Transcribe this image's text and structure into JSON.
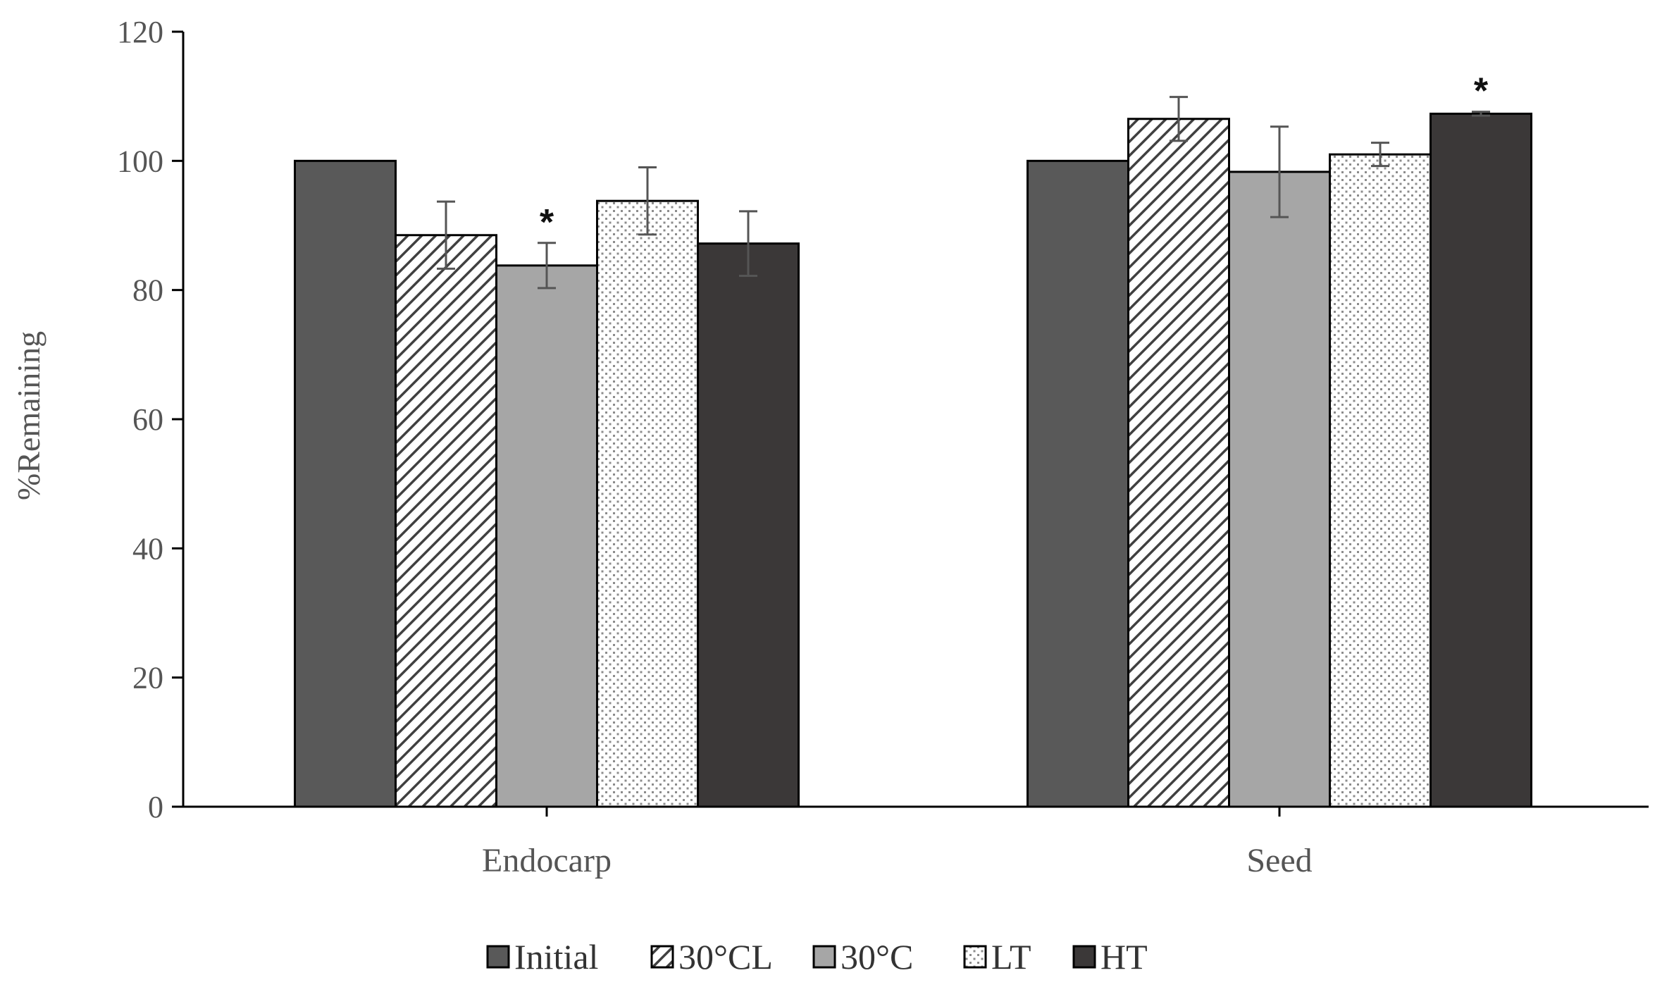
{
  "chart_data": {
    "type": "bar",
    "title": "",
    "xlabel": "",
    "ylabel": "%Remaining",
    "ylim": [
      0,
      120
    ],
    "yticks": [
      0,
      20,
      40,
      60,
      80,
      100,
      120
    ],
    "categories": [
      "Endocarp",
      "Seed"
    ],
    "grid": false,
    "legend_position": "bottom",
    "series": [
      {
        "name": "Initial",
        "fill": "solid",
        "color": "#595959",
        "values": [
          100,
          100
        ],
        "errors": [
          0,
          0
        ]
      },
      {
        "name": "30°CL",
        "fill": "diagonal-hatch",
        "color": "#404040",
        "values": [
          88.5,
          106.5
        ],
        "errors": [
          5.2,
          3.4
        ]
      },
      {
        "name": "30°C",
        "fill": "solid",
        "color": "#a6a6a6",
        "values": [
          83.8,
          98.3
        ],
        "errors": [
          3.5,
          7.0
        ]
      },
      {
        "name": "LT",
        "fill": "dots",
        "color": "#8c8c8c",
        "values": [
          93.8,
          101.0
        ],
        "errors": [
          5.2,
          1.8
        ]
      },
      {
        "name": "HT",
        "fill": "solid",
        "color": "#3b3838",
        "values": [
          87.2,
          107.3
        ],
        "errors": [
          5.0,
          0.3
        ]
      }
    ],
    "annotations": [
      {
        "text": "*",
        "category": "Endocarp",
        "series": "30°C"
      },
      {
        "text": "*",
        "category": "Seed",
        "series": "HT"
      }
    ]
  }
}
